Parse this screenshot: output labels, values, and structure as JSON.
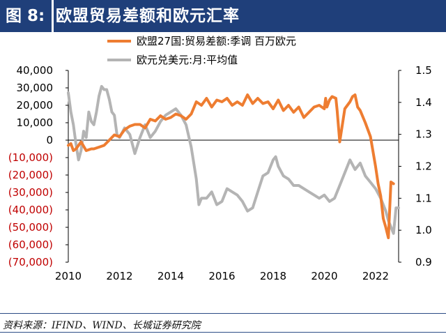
{
  "header": {
    "figure_label": "图 8:",
    "title": "欧盟贸易差额和欧元汇率"
  },
  "source": "资料来源：IFIND、WIND、长城证券研究院",
  "colors": {
    "header_bg": "#1f3f7a",
    "series_trade": "#ee7d31",
    "series_fx": "#b4b4b4",
    "negative_label": "#c00000"
  },
  "chart_data": {
    "type": "line",
    "x_tick_labels": [
      "2010",
      "2012",
      "2014",
      "2016",
      "2018",
      "2020",
      "2022"
    ],
    "xlim": [
      2010.0,
      2022.9
    ],
    "y_left_tick_labels": [
      "40,000",
      "30,000",
      "20,000",
      "10,000",
      "0",
      "(10,000)",
      "(20,000)",
      "(30,000)",
      "(40,000)",
      "(50,000)",
      "(60,000)",
      "(70,000)"
    ],
    "y_left_ticks": [
      40000,
      30000,
      20000,
      10000,
      0,
      -10000,
      -20000,
      -30000,
      -40000,
      -50000,
      -60000,
      -70000
    ],
    "ylim_left": [
      -70000,
      40000
    ],
    "y_right_tick_labels": [
      "1.5",
      "1.4",
      "1.3",
      "1.2",
      "1.1",
      "1.0",
      "0.9"
    ],
    "y_right_ticks": [
      1.5,
      1.4,
      1.3,
      1.2,
      1.1,
      1.0,
      0.9
    ],
    "ylim_right": [
      0.9,
      1.5
    ],
    "legend_position": "top",
    "series": [
      {
        "name": "欧盟27国:贸易差额:季调 百万欧元",
        "axis": "left",
        "x": [
          2010.0,
          2010.1,
          2010.2,
          2010.3,
          2010.5,
          2010.7,
          2010.9,
          2011.0,
          2011.2,
          2011.4,
          2011.6,
          2011.8,
          2012.0,
          2012.2,
          2012.4,
          2012.6,
          2012.8,
          2013.0,
          2013.2,
          2013.4,
          2013.6,
          2013.8,
          2014.0,
          2014.2,
          2014.4,
          2014.6,
          2014.8,
          2015.0,
          2015.2,
          2015.4,
          2015.6,
          2015.8,
          2016.0,
          2016.2,
          2016.4,
          2016.6,
          2016.8,
          2017.0,
          2017.2,
          2017.4,
          2017.6,
          2017.8,
          2018.0,
          2018.2,
          2018.4,
          2018.6,
          2018.8,
          2019.0,
          2019.2,
          2019.4,
          2019.6,
          2019.8,
          2020.0,
          2020.05,
          2020.1,
          2020.2,
          2020.3,
          2020.45,
          2020.5,
          2020.6,
          2020.8,
          2021.0,
          2021.1,
          2021.2,
          2021.3,
          2021.4,
          2021.6,
          2021.8,
          2022.0,
          2022.1,
          2022.2,
          2022.3,
          2022.4,
          2022.5,
          2022.6,
          2022.7
        ],
        "values": [
          -3000,
          -2000,
          -6000,
          -5000,
          -1000,
          -6000,
          -5000,
          -5000,
          -4000,
          -3000,
          0,
          3000,
          2000,
          6000,
          8000,
          9000,
          9000,
          7000,
          12000,
          11000,
          14000,
          12000,
          13000,
          15000,
          14000,
          12000,
          15000,
          22000,
          20000,
          24000,
          19000,
          23000,
          22000,
          24000,
          20000,
          22000,
          20000,
          26000,
          21000,
          24000,
          21000,
          22000,
          18000,
          23000,
          17000,
          20000,
          16000,
          19000,
          13000,
          16000,
          19000,
          20000,
          18000,
          24000,
          19000,
          23000,
          25000,
          24000,
          17000,
          -1000,
          18000,
          22000,
          25000,
          26000,
          19000,
          17000,
          10000,
          2000,
          -15000,
          -25000,
          -32000,
          -45000,
          -50000,
          -56000,
          -24000,
          -25000
        ]
      },
      {
        "name": "欧元兑美元:月:平均值",
        "axis": "right",
        "x": [
          2010.0,
          2010.1,
          2010.2,
          2010.3,
          2010.4,
          2010.5,
          2010.6,
          2010.7,
          2010.8,
          2010.9,
          2011.0,
          2011.1,
          2011.2,
          2011.3,
          2011.4,
          2011.5,
          2011.6,
          2011.7,
          2011.8,
          2011.9,
          2012.0,
          2012.2,
          2012.4,
          2012.6,
          2012.8,
          2013.0,
          2013.2,
          2013.4,
          2013.6,
          2013.8,
          2014.0,
          2014.2,
          2014.4,
          2014.6,
          2014.8,
          2015.0,
          2015.1,
          2015.2,
          2015.4,
          2015.6,
          2015.8,
          2016.0,
          2016.2,
          2016.4,
          2016.6,
          2016.8,
          2017.0,
          2017.2,
          2017.4,
          2017.6,
          2017.8,
          2018.0,
          2018.1,
          2018.2,
          2018.4,
          2018.6,
          2018.8,
          2019.0,
          2019.2,
          2019.4,
          2019.6,
          2019.8,
          2020.0,
          2020.2,
          2020.4,
          2020.6,
          2020.8,
          2021.0,
          2021.2,
          2021.4,
          2021.6,
          2021.8,
          2022.0,
          2022.2,
          2022.4,
          2022.5,
          2022.6,
          2022.7,
          2022.8,
          2022.9
        ],
        "values": [
          1.43,
          1.37,
          1.33,
          1.27,
          1.22,
          1.25,
          1.31,
          1.29,
          1.37,
          1.34,
          1.33,
          1.37,
          1.42,
          1.45,
          1.44,
          1.44,
          1.41,
          1.37,
          1.36,
          1.3,
          1.29,
          1.32,
          1.3,
          1.24,
          1.29,
          1.33,
          1.29,
          1.31,
          1.34,
          1.36,
          1.37,
          1.38,
          1.36,
          1.33,
          1.26,
          1.16,
          1.08,
          1.1,
          1.1,
          1.12,
          1.08,
          1.09,
          1.13,
          1.12,
          1.11,
          1.09,
          1.06,
          1.07,
          1.12,
          1.17,
          1.18,
          1.22,
          1.23,
          1.2,
          1.17,
          1.16,
          1.14,
          1.14,
          1.13,
          1.12,
          1.11,
          1.1,
          1.11,
          1.09,
          1.1,
          1.14,
          1.18,
          1.22,
          1.19,
          1.21,
          1.17,
          1.15,
          1.13,
          1.1,
          1.06,
          1.03,
          1.01,
          0.99,
          1.07,
          1.07
        ]
      }
    ]
  }
}
